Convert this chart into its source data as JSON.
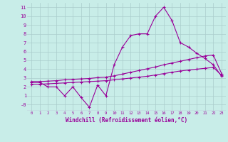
{
  "bg_color": "#c8ede8",
  "line_color": "#990099",
  "grid_color": "#aacccc",
  "xlabel": "Windchill (Refroidissement éolien,°C)",
  "x_ticks": [
    0,
    1,
    2,
    3,
    4,
    5,
    6,
    7,
    8,
    9,
    10,
    11,
    12,
    13,
    14,
    15,
    16,
    17,
    18,
    19,
    20,
    21,
    22,
    23
  ],
  "y_ticks": [
    0,
    1,
    2,
    3,
    4,
    5,
    6,
    7,
    8,
    9,
    10,
    11
  ],
  "y_tick_labels": [
    "-0",
    "1",
    "2",
    "3",
    "4",
    "5",
    "6",
    "7",
    "8",
    "9",
    "10",
    "11"
  ],
  "ylim": [
    -0.7,
    11.5
  ],
  "xlim": [
    -0.5,
    23.5
  ],
  "s1_x": [
    0,
    1,
    2,
    3,
    4,
    5,
    6,
    7,
    8,
    9,
    10,
    11,
    12,
    13,
    14,
    15,
    16,
    17,
    18,
    19,
    20,
    21,
    22,
    23
  ],
  "s1_y": [
    2.5,
    2.5,
    2.0,
    2.0,
    1.0,
    2.0,
    0.8,
    -0.3,
    2.2,
    1.0,
    4.5,
    6.5,
    7.8,
    8.0,
    8.0,
    10.0,
    11.0,
    9.5,
    7.0,
    6.5,
    5.8,
    5.2,
    4.5,
    3.2
  ],
  "s2_x": [
    0,
    1,
    2,
    3,
    4,
    5,
    6,
    7,
    8,
    9,
    10,
    11,
    12,
    13,
    14,
    15,
    16,
    17,
    18,
    19,
    20,
    21,
    22,
    23
  ],
  "s2_y": [
    2.6,
    2.6,
    2.65,
    2.7,
    2.8,
    2.85,
    2.9,
    2.95,
    3.05,
    3.1,
    3.25,
    3.45,
    3.65,
    3.85,
    4.05,
    4.25,
    4.5,
    4.7,
    4.9,
    5.1,
    5.3,
    5.5,
    5.6,
    3.5
  ],
  "s3_x": [
    0,
    1,
    2,
    3,
    4,
    5,
    6,
    7,
    8,
    9,
    10,
    11,
    12,
    13,
    14,
    15,
    16,
    17,
    18,
    19,
    20,
    21,
    22,
    23
  ],
  "s3_y": [
    2.3,
    2.3,
    2.35,
    2.4,
    2.45,
    2.5,
    2.55,
    2.6,
    2.65,
    2.7,
    2.8,
    2.9,
    3.0,
    3.1,
    3.2,
    3.35,
    3.5,
    3.65,
    3.8,
    3.9,
    4.0,
    4.1,
    4.2,
    3.3
  ]
}
